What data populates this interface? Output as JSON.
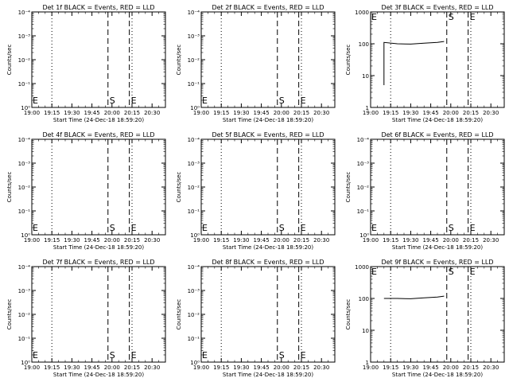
{
  "chart_data": [
    {
      "type": "line",
      "title": "Det 1f BLACK = Events, RED = LLD",
      "xlabel": "Start Time (24-Dec-18 18:59:20)",
      "ylabel": "Counts/sec",
      "x_ticks": [
        "19:00",
        "19:15",
        "19:30",
        "19:45",
        "20:00",
        "20:15",
        "20:30"
      ],
      "y_scale": "log",
      "y_ticks": [
        "10⁰",
        "10⁻¹",
        "10⁻²",
        "10⁻³",
        "10⁻⁴"
      ],
      "markers": [
        {
          "label": "S",
          "time": "19:57"
        },
        {
          "label": "E",
          "time": "20:13"
        },
        {
          "label": "E",
          "time": "19:00"
        }
      ],
      "dotted_lines": [
        "19:15",
        "20:15"
      ],
      "series": []
    },
    {
      "type": "line",
      "title": "Det 2f BLACK = Events, RED = LLD",
      "xlabel": "Start Time (24-Dec-18 18:59:20)",
      "ylabel": "Counts/sec",
      "x_ticks": [
        "19:00",
        "19:15",
        "19:30",
        "19:45",
        "20:00",
        "20:15",
        "20:30"
      ],
      "y_scale": "log",
      "y_ticks": [
        "10⁰",
        "10⁻¹",
        "10⁻²",
        "10⁻³",
        "10⁻⁴"
      ],
      "markers": [
        {
          "label": "S",
          "time": "19:57"
        },
        {
          "label": "E",
          "time": "20:13"
        },
        {
          "label": "E",
          "time": "19:00"
        }
      ],
      "dotted_lines": [
        "19:15",
        "20:15"
      ],
      "series": []
    },
    {
      "type": "line",
      "title": "Det 3f BLACK = Events, RED = LLD",
      "xlabel": "Start Time (24-Dec-18 18:59:20)",
      "ylabel": "Counts/sec",
      "x_ticks": [
        "19:00",
        "19:15",
        "19:30",
        "19:45",
        "20:00",
        "20:15",
        "20:30"
      ],
      "y_scale": "log",
      "y_ticks": [
        "1",
        "10",
        "100",
        "1000"
      ],
      "markers": [
        {
          "label": "S",
          "time": "19:57"
        },
        {
          "label": "E",
          "time": "20:13"
        },
        {
          "label": "E",
          "time": "19:00"
        }
      ],
      "dotted_lines": [
        "19:15",
        "20:15"
      ],
      "series": [
        {
          "name": "Events",
          "color": "#000000",
          "x": [
            "19:10",
            "19:10",
            "19:20",
            "19:30",
            "19:40",
            "19:50",
            "19:55"
          ],
          "y": [
            5,
            110,
            100,
            98,
            105,
            110,
            118
          ]
        }
      ]
    },
    {
      "type": "line",
      "title": "Det 4f BLACK = Events, RED = LLD",
      "xlabel": "Start Time (24-Dec-18 18:59:20)",
      "ylabel": "Counts/sec",
      "x_ticks": [
        "19:00",
        "19:15",
        "19:30",
        "19:45",
        "20:00",
        "20:15",
        "20:30"
      ],
      "y_scale": "log",
      "y_ticks": [
        "10⁰",
        "10⁻¹",
        "10⁻²",
        "10⁻³",
        "10⁻⁴"
      ],
      "markers": [
        {
          "label": "S",
          "time": "19:57"
        },
        {
          "label": "E",
          "time": "20:13"
        },
        {
          "label": "E",
          "time": "19:00"
        }
      ],
      "dotted_lines": [
        "19:15",
        "20:15"
      ],
      "series": []
    },
    {
      "type": "line",
      "title": "Det 5f BLACK = Events, RED = LLD",
      "xlabel": "Start Time (24-Dec-18 18:59:20)",
      "ylabel": "Counts/sec",
      "x_ticks": [
        "19:00",
        "19:15",
        "19:30",
        "19:45",
        "20:00",
        "20:15",
        "20:30"
      ],
      "y_scale": "log",
      "y_ticks": [
        "10⁰",
        "10⁻¹",
        "10⁻²",
        "10⁻³",
        "10⁻⁴"
      ],
      "markers": [
        {
          "label": "S",
          "time": "19:57"
        },
        {
          "label": "E",
          "time": "20:13"
        },
        {
          "label": "E",
          "time": "19:00"
        }
      ],
      "dotted_lines": [
        "19:15",
        "20:15"
      ],
      "series": []
    },
    {
      "type": "line",
      "title": "Det 6f BLACK = Events, RED = LLD",
      "xlabel": "Start Time (24-Dec-18 18:59:20)",
      "ylabel": "Counts/sec",
      "x_ticks": [
        "19:00",
        "19:15",
        "19:30",
        "19:45",
        "20:00",
        "20:15",
        "20:30"
      ],
      "y_scale": "log",
      "y_ticks": [
        "10⁰",
        "10⁻¹",
        "10⁻²",
        "10⁻³",
        "10⁻⁴"
      ],
      "markers": [
        {
          "label": "S",
          "time": "19:57"
        },
        {
          "label": "E",
          "time": "20:13"
        },
        {
          "label": "E",
          "time": "19:00"
        }
      ],
      "dotted_lines": [
        "19:15",
        "20:15"
      ],
      "series": []
    },
    {
      "type": "line",
      "title": "Det 7f BLACK = Events, RED = LLD",
      "xlabel": "Start Time (24-Dec-18 18:59:20)",
      "ylabel": "Counts/sec",
      "x_ticks": [
        "19:00",
        "19:15",
        "19:30",
        "19:45",
        "20:00",
        "20:15",
        "20:30"
      ],
      "y_scale": "log",
      "y_ticks": [
        "10⁰",
        "10⁻¹",
        "10⁻²",
        "10⁻³",
        "10⁻⁴"
      ],
      "markers": [
        {
          "label": "S",
          "time": "19:57"
        },
        {
          "label": "E",
          "time": "20:13"
        },
        {
          "label": "E",
          "time": "19:00"
        }
      ],
      "dotted_lines": [
        "19:15",
        "20:15"
      ],
      "series": []
    },
    {
      "type": "line",
      "title": "Det 8f BLACK = Events, RED = LLD",
      "xlabel": "Start Time (24-Dec-18 18:59:20)",
      "ylabel": "Counts/sec",
      "x_ticks": [
        "19:00",
        "19:15",
        "19:30",
        "19:45",
        "20:00",
        "20:15",
        "20:30"
      ],
      "y_scale": "log",
      "y_ticks": [
        "10⁰",
        "10⁻¹",
        "10⁻²",
        "10⁻³",
        "10⁻⁴"
      ],
      "markers": [
        {
          "label": "S",
          "time": "19:57"
        },
        {
          "label": "E",
          "time": "20:13"
        },
        {
          "label": "E",
          "time": "19:00"
        }
      ],
      "dotted_lines": [
        "19:15",
        "20:15"
      ],
      "series": []
    },
    {
      "type": "line",
      "title": "Det 9f BLACK = Events, RED = LLD",
      "xlabel": "Start Time (24-Dec-18 18:59:20)",
      "ylabel": "Counts/sec",
      "x_ticks": [
        "19:00",
        "19:15",
        "19:30",
        "19:45",
        "20:00",
        "20:15",
        "20:30"
      ],
      "y_scale": "log",
      "y_ticks": [
        "1",
        "10",
        "100",
        "1000"
      ],
      "markers": [
        {
          "label": "S",
          "time": "19:57"
        },
        {
          "label": "E",
          "time": "20:13"
        },
        {
          "label": "E",
          "time": "19:00"
        }
      ],
      "dotted_lines": [
        "19:15",
        "20:15"
      ],
      "series": [
        {
          "name": "Events",
          "color": "#000000",
          "x": [
            "19:10",
            "19:20",
            "19:30",
            "19:40",
            "19:50",
            "19:55"
          ],
          "y": [
            100,
            100,
            98,
            105,
            110,
            118
          ]
        }
      ]
    }
  ]
}
